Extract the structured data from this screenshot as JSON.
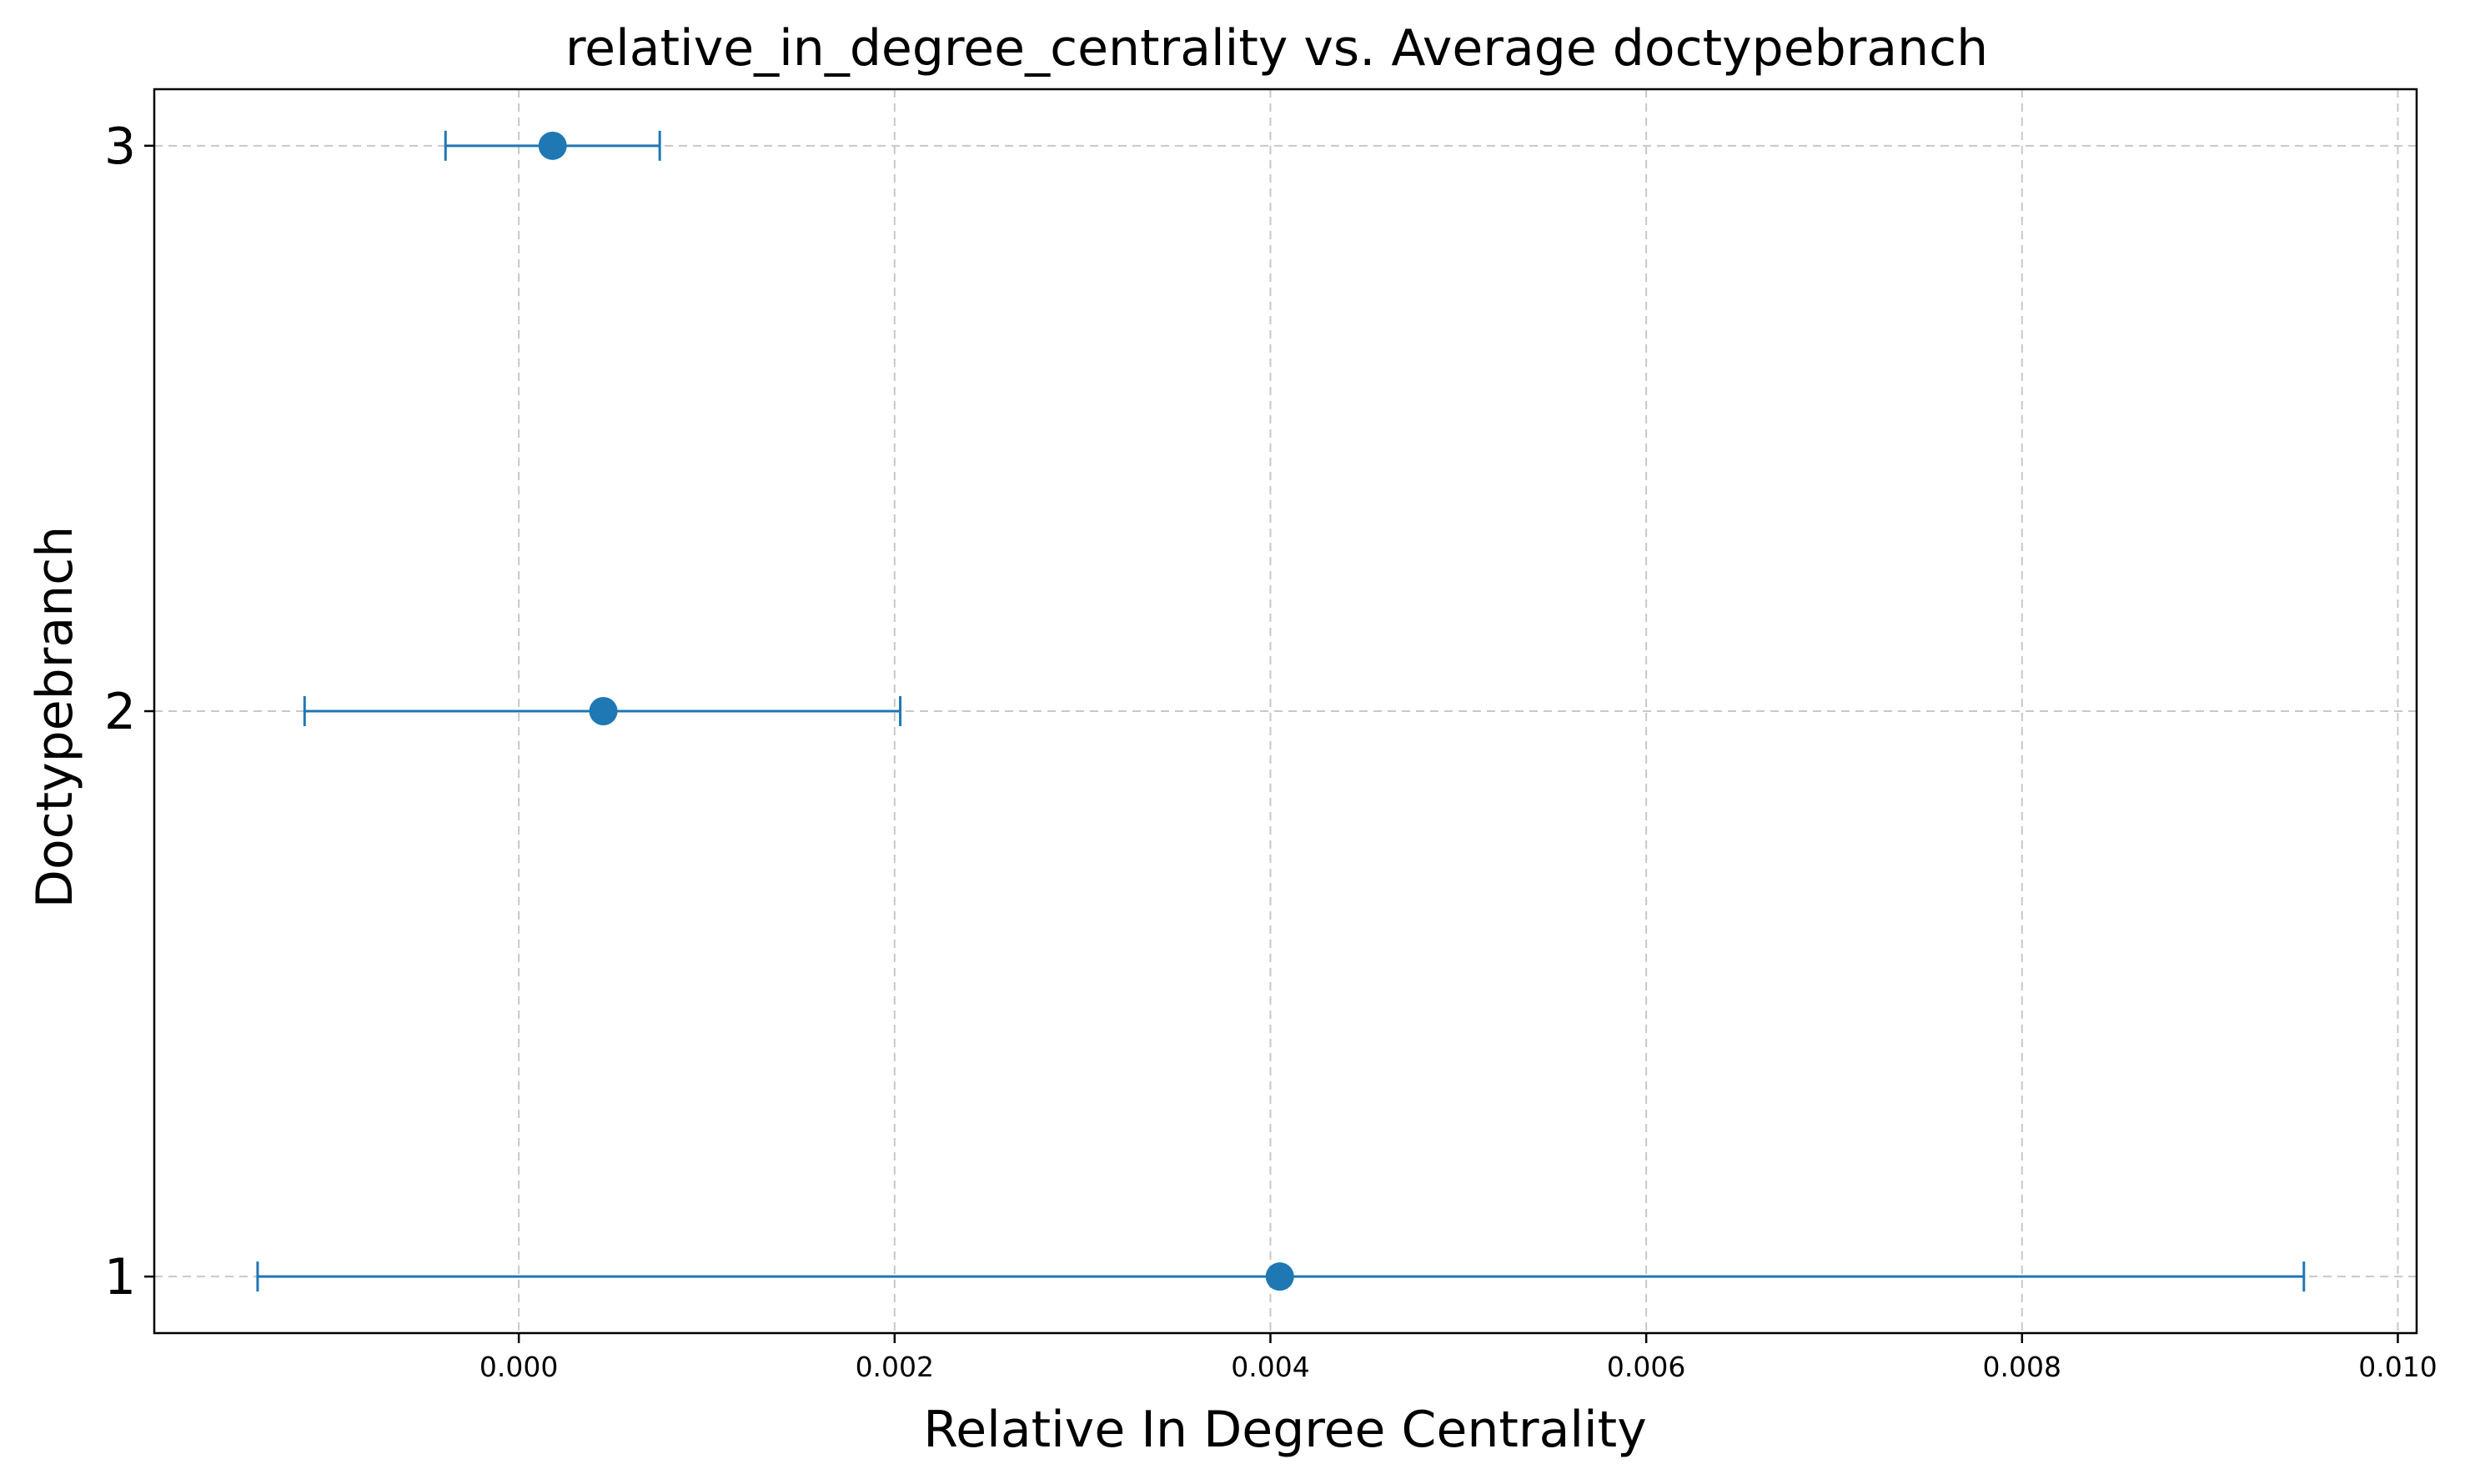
{
  "chart_data": {
    "type": "scatter",
    "title": "relative_in_degree_centrality vs. Average doctypebranch",
    "xlabel": "Relative In Degree Centrality",
    "ylabel": "Doctypebranch",
    "xlim": [
      -0.00194,
      0.0101
    ],
    "ylim": [
      0.9,
      3.1
    ],
    "xticks": [
      0.0,
      0.002,
      0.004,
      0.006,
      0.008,
      0.01
    ],
    "xtick_labels": [
      "0.000",
      "0.002",
      "0.004",
      "0.006",
      "0.008",
      "0.010"
    ],
    "yticks": [
      1,
      2,
      3
    ],
    "ytick_labels": [
      "1",
      "2",
      "3"
    ],
    "grid": true,
    "color": "#1f77b4",
    "series": [
      {
        "points": [
          {
            "y": 1,
            "x": 0.00405,
            "xerr_low": -0.00139,
            "xerr_high": 0.0095
          },
          {
            "y": 2,
            "x": 0.00045,
            "xerr_low": -0.00114,
            "xerr_high": 0.00203
          },
          {
            "y": 3,
            "x": 0.00018,
            "xerr_low": -0.00039,
            "xerr_high": 0.00075
          }
        ]
      }
    ]
  }
}
